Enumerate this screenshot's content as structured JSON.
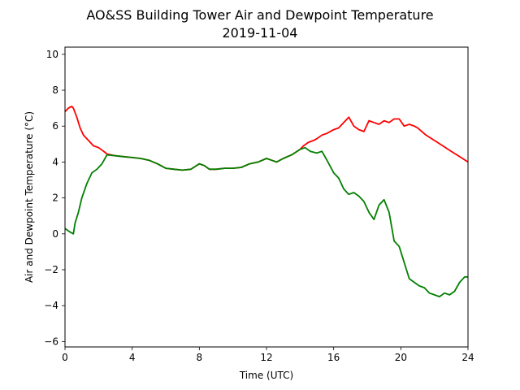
{
  "chart_data": {
    "type": "line",
    "title": "AO&SS Building Tower Air and Dewpoint Temperature",
    "subtitle": "2019-11-04",
    "xlabel": "Time (UTC)",
    "ylabel": "Air and Dewpoint Temperature (°C)",
    "xlim": [
      0,
      24
    ],
    "ylim": [
      -6.3,
      10.4
    ],
    "x_ticks": [
      0,
      4,
      8,
      12,
      16,
      20,
      24
    ],
    "y_ticks": [
      -6,
      -4,
      -2,
      0,
      2,
      4,
      6,
      8,
      10
    ],
    "grid": false,
    "legend": "none",
    "series": [
      {
        "color": "#ff0000",
        "x": [
          0,
          0.2,
          0.4,
          0.5,
          0.7,
          0.9,
          1.1,
          1.4,
          1.7,
          2.0,
          2.3,
          2.5,
          3,
          3.5,
          4,
          4.5,
          5,
          5.5,
          6,
          6.5,
          7,
          7.5,
          8,
          8.3,
          8.6,
          9,
          9.5,
          10,
          10.5,
          11,
          11.5,
          12,
          12.3,
          12.6,
          13,
          13.5,
          14,
          14.2,
          14.5,
          14.8,
          15,
          15.3,
          15.6,
          16,
          16.3,
          16.6,
          16.9,
          17.2,
          17.5,
          17.8,
          18.1,
          18.4,
          18.7,
          19,
          19.3,
          19.6,
          19.9,
          20.2,
          20.5,
          20.8,
          21,
          21.5,
          22,
          22.5,
          23,
          23.5,
          24
        ],
        "values": [
          6.8,
          7.0,
          7.1,
          7.0,
          6.5,
          5.9,
          5.5,
          5.2,
          4.9,
          4.8,
          4.6,
          4.45,
          4.35,
          4.3,
          4.25,
          4.2,
          4.1,
          3.9,
          3.65,
          3.6,
          3.55,
          3.6,
          3.9,
          3.8,
          3.6,
          3.6,
          3.65,
          3.65,
          3.7,
          3.9,
          4.0,
          4.2,
          4.1,
          4.0,
          4.2,
          4.4,
          4.7,
          4.9,
          5.1,
          5.2,
          5.3,
          5.5,
          5.6,
          5.8,
          5.9,
          6.2,
          6.5,
          6.0,
          5.8,
          5.7,
          6.3,
          6.2,
          6.1,
          6.3,
          6.2,
          6.4,
          6.4,
          6.0,
          6.1,
          6.0,
          5.9,
          5.5,
          5.2,
          4.9,
          4.6,
          4.3,
          4.0
        ]
      },
      {
        "color": "#008000",
        "x": [
          0,
          0.3,
          0.5,
          0.6,
          0.8,
          1.0,
          1.3,
          1.6,
          1.9,
          2.2,
          2.5,
          3,
          3.5,
          4,
          4.5,
          5,
          5.5,
          6,
          6.5,
          7,
          7.5,
          8,
          8.3,
          8.6,
          9,
          9.5,
          10,
          10.5,
          11,
          11.5,
          12,
          12.3,
          12.6,
          13,
          13.5,
          14,
          14.3,
          14.6,
          15,
          15.3,
          15.6,
          16,
          16.3,
          16.6,
          16.9,
          17.2,
          17.5,
          17.8,
          18.1,
          18.4,
          18.7,
          19,
          19.3,
          19.6,
          19.9,
          20.2,
          20.5,
          20.8,
          21.1,
          21.4,
          21.7,
          22,
          22.3,
          22.6,
          22.9,
          23.2,
          23.5,
          23.8,
          24
        ],
        "values": [
          0.3,
          0.1,
          0.0,
          0.6,
          1.2,
          2.0,
          2.8,
          3.4,
          3.6,
          3.9,
          4.4,
          4.35,
          4.3,
          4.25,
          4.2,
          4.1,
          3.9,
          3.65,
          3.6,
          3.55,
          3.6,
          3.9,
          3.8,
          3.6,
          3.6,
          3.65,
          3.65,
          3.7,
          3.9,
          4.0,
          4.2,
          4.1,
          4.0,
          4.2,
          4.4,
          4.7,
          4.8,
          4.6,
          4.5,
          4.6,
          4.1,
          3.4,
          3.1,
          2.5,
          2.2,
          2.3,
          2.1,
          1.8,
          1.2,
          0.8,
          1.6,
          1.9,
          1.2,
          -0.4,
          -0.7,
          -1.6,
          -2.5,
          -2.7,
          -2.9,
          -3.0,
          -3.3,
          -3.4,
          -3.5,
          -3.3,
          -3.4,
          -3.2,
          -2.7,
          -2.4,
          -2.4
        ]
      }
    ]
  }
}
